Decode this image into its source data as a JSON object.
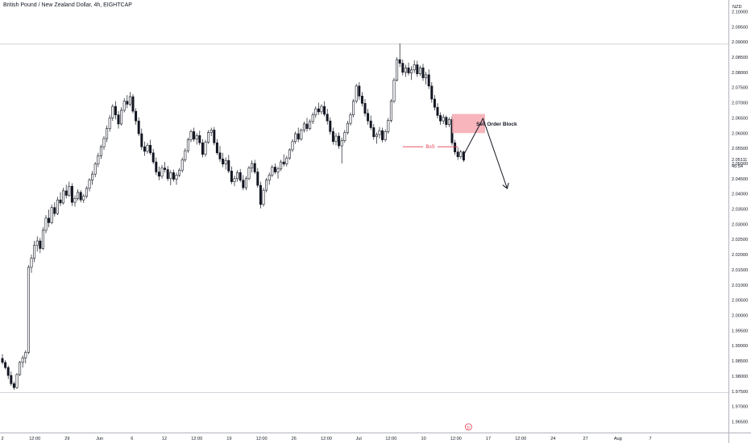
{
  "header": {
    "title": "British Pound / New Zealand Dollar, 4h, EIGHTCAP"
  },
  "chart_data": {
    "type": "candlestick",
    "currency_label": "NZD",
    "ylim": [
      1.963,
      2.1025
    ],
    "y_ticks": [
      "2.10000",
      "2.09500",
      "2.09000",
      "2.08500",
      "2.08000",
      "2.07500",
      "2.07000",
      "2.06500",
      "2.06000",
      "2.05500",
      "2.05000",
      "2.04500",
      "2.04000",
      "2.03500",
      "2.03000",
      "2.02500",
      "2.02000",
      "2.01500",
      "2.01000",
      "2.00500",
      "2.00000",
      "1.99500",
      "1.99000",
      "1.98500",
      "1.98000",
      "1.97500",
      "1.97000",
      "1.96500"
    ],
    "x_ticks": [
      "2",
      "12:00",
      "29",
      "Jun",
      "6",
      "12",
      "12:00",
      "19",
      "12:00",
      "26",
      "12:00",
      "Jul",
      "12:00",
      "10",
      "12:00",
      "17",
      "12:00",
      "24",
      "27",
      "Aug",
      "7"
    ],
    "last_price": "2.05111",
    "countdown": "45:54",
    "reference_lines": [
      2.0893,
      1.9745
    ],
    "candles": [
      [
        1.9858,
        1.9872,
        1.9838,
        1.9845
      ],
      [
        1.9845,
        1.9852,
        1.9822,
        1.9828
      ],
      [
        1.9828,
        1.9835,
        1.979,
        1.9802
      ],
      [
        1.9802,
        1.9815,
        1.9768,
        1.9775
      ],
      [
        1.9775,
        1.9782,
        1.9755,
        1.9762
      ],
      [
        1.9762,
        1.981,
        1.9758,
        1.9805
      ],
      [
        1.9805,
        1.985,
        1.98,
        1.9845
      ],
      [
        1.9845,
        1.9868,
        1.9828,
        1.986
      ],
      [
        1.986,
        1.9885,
        1.9842,
        1.9878
      ],
      [
        1.9878,
        2.0165,
        1.9872,
        2.0158
      ],
      [
        2.0158,
        2.02,
        2.014,
        2.0188
      ],
      [
        2.0188,
        2.0245,
        2.0175,
        2.023
      ],
      [
        2.023,
        2.026,
        2.021,
        2.0245
      ],
      [
        2.0245,
        2.0255,
        2.0205,
        2.022
      ],
      [
        2.022,
        2.029,
        2.0215,
        2.028
      ],
      [
        2.028,
        2.033,
        2.027,
        2.032
      ],
      [
        2.032,
        2.0348,
        2.029,
        2.0305
      ],
      [
        2.0305,
        2.0365,
        2.03,
        2.0355
      ],
      [
        2.0355,
        2.0372,
        2.0325,
        2.0335
      ],
      [
        2.0335,
        2.039,
        2.033,
        2.038
      ],
      [
        2.038,
        2.0405,
        2.036,
        2.037
      ],
      [
        2.037,
        2.042,
        2.0365,
        2.041
      ],
      [
        2.041,
        2.043,
        2.0385,
        2.0395
      ],
      [
        2.0395,
        2.044,
        2.039,
        2.0425
      ],
      [
        2.0425,
        2.0435,
        2.036,
        2.0372
      ],
      [
        2.0372,
        2.0395,
        2.0358,
        2.0385
      ],
      [
        2.0385,
        2.0415,
        2.0378,
        2.0405
      ],
      [
        2.0405,
        2.0412,
        2.0372,
        2.038
      ],
      [
        2.038,
        2.04,
        2.037,
        2.0392
      ],
      [
        2.0392,
        2.0425,
        2.0385,
        2.0418
      ],
      [
        2.0418,
        2.0452,
        2.0408,
        2.0445
      ],
      [
        2.0445,
        2.0475,
        2.043,
        2.0465
      ],
      [
        2.0465,
        2.0505,
        2.0455,
        2.0498
      ],
      [
        2.0498,
        2.0535,
        2.0488,
        2.0525
      ],
      [
        2.0525,
        2.0562,
        2.0515,
        2.0555
      ],
      [
        2.0555,
        2.059,
        2.0545,
        2.0582
      ],
      [
        2.0582,
        2.0625,
        2.057,
        2.0615
      ],
      [
        2.0615,
        2.066,
        2.0605,
        2.065
      ],
      [
        2.065,
        2.0695,
        2.064,
        2.0688
      ],
      [
        2.0688,
        2.0705,
        2.0645,
        2.066
      ],
      [
        2.066,
        2.0672,
        2.0615,
        2.063
      ],
      [
        2.063,
        2.0685,
        2.0625,
        2.0675
      ],
      [
        2.0675,
        2.0715,
        2.0668,
        2.0705
      ],
      [
        2.0705,
        2.0725,
        2.0682,
        2.0695
      ],
      [
        2.0695,
        2.0735,
        2.0688,
        2.072
      ],
      [
        2.072,
        2.0728,
        2.0665,
        2.0672
      ],
      [
        2.0672,
        2.0682,
        2.0628,
        2.064
      ],
      [
        2.064,
        2.0652,
        2.059,
        2.0598
      ],
      [
        2.0598,
        2.0615,
        2.0545,
        2.0555
      ],
      [
        2.0555,
        2.0572,
        2.0525,
        2.054
      ],
      [
        2.054,
        2.0568,
        2.0532,
        2.056
      ],
      [
        2.056,
        2.0578,
        2.0528,
        2.0535
      ],
      [
        2.0535,
        2.0548,
        2.0498,
        2.0505
      ],
      [
        2.0505,
        2.052,
        2.0462,
        2.0472
      ],
      [
        2.0472,
        2.049,
        2.0445,
        2.0458
      ],
      [
        2.0458,
        2.0495,
        2.045,
        2.0485
      ],
      [
        2.0485,
        2.0505,
        2.047,
        2.048
      ],
      [
        2.048,
        2.0492,
        2.0442,
        2.045
      ],
      [
        2.045,
        2.0478,
        2.0428,
        2.047
      ],
      [
        2.047,
        2.048,
        2.044,
        2.0448
      ],
      [
        2.0448,
        2.047,
        2.043,
        2.0462
      ],
      [
        2.0462,
        2.0485,
        2.0455,
        2.0478
      ],
      [
        2.0478,
        2.052,
        2.047,
        2.0512
      ],
      [
        2.0512,
        2.055,
        2.0505,
        2.0542
      ],
      [
        2.0542,
        2.0585,
        2.0535,
        2.0578
      ],
      [
        2.0578,
        2.0612,
        2.057,
        2.0605
      ],
      [
        2.0605,
        2.0618,
        2.0572,
        2.058
      ],
      [
        2.058,
        2.06,
        2.0562,
        2.0592
      ],
      [
        2.0592,
        2.0608,
        2.056,
        2.0568
      ],
      [
        2.0568,
        2.058,
        2.052,
        2.053
      ],
      [
        2.053,
        2.0578,
        2.0522,
        2.057
      ],
      [
        2.057,
        2.061,
        2.0565,
        2.0602
      ],
      [
        2.0602,
        2.0618,
        2.059,
        2.061
      ],
      [
        2.061,
        2.062,
        2.056,
        2.0568
      ],
      [
        2.0568,
        2.058,
        2.0528,
        2.0535
      ],
      [
        2.0535,
        2.0558,
        2.0505,
        2.0515
      ],
      [
        2.0515,
        2.0535,
        2.0488,
        2.0498
      ],
      [
        2.0498,
        2.052,
        2.048,
        2.051
      ],
      [
        2.051,
        2.0528,
        2.0468,
        2.0475
      ],
      [
        2.0475,
        2.049,
        2.0432,
        2.044
      ],
      [
        2.044,
        2.046,
        2.0425,
        2.045
      ],
      [
        2.045,
        2.0478,
        2.044,
        2.047
      ],
      [
        2.047,
        2.0482,
        2.0438,
        2.0445
      ],
      [
        2.0445,
        2.0462,
        2.0412,
        2.042
      ],
      [
        2.042,
        2.0458,
        2.0412,
        2.045
      ],
      [
        2.045,
        2.0492,
        2.0445,
        2.0485
      ],
      [
        2.0485,
        2.051,
        2.047,
        2.05
      ],
      [
        2.05,
        2.0512,
        2.0465,
        2.0472
      ],
      [
        2.0472,
        2.0485,
        2.042,
        2.0428
      ],
      [
        2.0428,
        2.044,
        2.0352,
        2.0365
      ],
      [
        2.0365,
        2.042,
        2.0358,
        2.0412
      ],
      [
        2.0412,
        2.0452,
        2.0405,
        2.0445
      ],
      [
        2.0445,
        2.047,
        2.043,
        2.0462
      ],
      [
        2.0462,
        2.0495,
        2.0455,
        2.0488
      ],
      [
        2.0488,
        2.05,
        2.0465,
        2.0472
      ],
      [
        2.0472,
        2.049,
        2.045,
        2.0482
      ],
      [
        2.0482,
        2.0512,
        2.0475,
        2.0505
      ],
      [
        2.0505,
        2.053,
        2.049,
        2.0498
      ],
      [
        2.0498,
        2.0525,
        2.049,
        2.0518
      ],
      [
        2.0518,
        2.055,
        2.0512,
        2.0545
      ],
      [
        2.0545,
        2.058,
        2.0538,
        2.0572
      ],
      [
        2.0572,
        2.0605,
        2.0565,
        2.0598
      ],
      [
        2.0598,
        2.0618,
        2.057,
        2.058
      ],
      [
        2.058,
        2.0615,
        2.0575,
        2.061
      ],
      [
        2.061,
        2.0638,
        2.0602,
        2.063
      ],
      [
        2.063,
        2.065,
        2.0605,
        2.0615
      ],
      [
        2.0615,
        2.0645,
        2.061,
        2.0638
      ],
      [
        2.0638,
        2.0668,
        2.063,
        2.066
      ],
      [
        2.066,
        2.0688,
        2.065,
        2.068
      ],
      [
        2.068,
        2.07,
        2.066,
        2.067
      ],
      [
        2.067,
        2.0695,
        2.0662,
        2.0688
      ],
      [
        2.0688,
        2.0705,
        2.0655,
        2.0662
      ],
      [
        2.0662,
        2.068,
        2.0628,
        2.064
      ],
      [
        2.064,
        2.0652,
        2.0595,
        2.0605
      ],
      [
        2.0605,
        2.0618,
        2.0562,
        2.0572
      ],
      [
        2.0572,
        2.06,
        2.056,
        2.059
      ],
      [
        2.059,
        2.0602,
        2.0548,
        2.0558
      ],
      [
        2.0558,
        2.0585,
        2.05,
        2.0575
      ],
      [
        2.0575,
        2.061,
        2.0568,
        2.0602
      ],
      [
        2.0602,
        2.064,
        2.0595,
        2.0632
      ],
      [
        2.0632,
        2.0668,
        2.0625,
        2.066
      ],
      [
        2.066,
        2.0712,
        2.0652,
        2.0705
      ],
      [
        2.0705,
        2.0762,
        2.0698,
        2.0755
      ],
      [
        2.0755,
        2.0768,
        2.071,
        2.0722
      ],
      [
        2.0722,
        2.0735,
        2.0688,
        2.0698
      ],
      [
        2.0698,
        2.0712,
        2.0655,
        2.0665
      ],
      [
        2.0665,
        2.068,
        2.0628,
        2.064
      ],
      [
        2.064,
        2.0658,
        2.061,
        2.0618
      ],
      [
        2.0618,
        2.063,
        2.0578,
        2.0588
      ],
      [
        2.0588,
        2.0602,
        2.0565,
        2.0595
      ],
      [
        2.0595,
        2.062,
        2.0582,
        2.0608
      ],
      [
        2.0608,
        2.0618,
        2.057,
        2.0578
      ],
      [
        2.0578,
        2.0612,
        2.0572,
        2.0605
      ],
      [
        2.0605,
        2.065,
        2.0598,
        2.0642
      ],
      [
        2.0642,
        2.0712,
        2.0635,
        2.0705
      ],
      [
        2.0705,
        2.0782,
        2.0698,
        2.0775
      ],
      [
        2.0775,
        2.085,
        2.077,
        2.0842
      ],
      [
        2.0842,
        2.0895,
        2.0818,
        2.083
      ],
      [
        2.083,
        2.0842,
        2.079,
        2.08
      ],
      [
        2.08,
        2.0825,
        2.0785,
        2.0815
      ],
      [
        2.0815,
        2.0832,
        2.079,
        2.0798
      ],
      [
        2.0798,
        2.082,
        2.0775,
        2.0808
      ],
      [
        2.0808,
        2.084,
        2.0798,
        2.0825
      ],
      [
        2.0825,
        2.0838,
        2.0785,
        2.0795
      ],
      [
        2.0795,
        2.0822,
        2.0788,
        2.0815
      ],
      [
        2.0815,
        2.0828,
        2.0772,
        2.0782
      ],
      [
        2.0782,
        2.0802,
        2.076,
        2.0792
      ],
      [
        2.0792,
        2.081,
        2.0745,
        2.0755
      ],
      [
        2.0755,
        2.0768,
        2.07,
        2.0712
      ],
      [
        2.0712,
        2.0725,
        2.0675,
        2.0685
      ],
      [
        2.0685,
        2.0698,
        2.0648,
        2.0658
      ],
      [
        2.0658,
        2.0668,
        2.0628,
        2.064
      ],
      [
        2.064,
        2.0662,
        2.063,
        2.0652
      ],
      [
        2.0652,
        2.0658,
        2.0618,
        2.0628
      ],
      [
        2.0628,
        2.0652,
        2.062,
        2.0645
      ],
      [
        2.0645,
        2.0655,
        2.056,
        2.0568
      ],
      [
        2.0568,
        2.0578,
        2.0528,
        2.0538
      ],
      [
        2.0538,
        2.0552,
        2.0512,
        2.0522
      ],
      [
        2.0522,
        2.0545,
        2.0515,
        2.0538
      ],
      [
        2.0538,
        2.0542,
        2.0505,
        2.0511
      ]
    ],
    "annotations": {
      "zone_label": "Sell Order Block",
      "zone_y": [
        2.06,
        2.0663
      ],
      "bos_label": "BoS",
      "bos_level": 2.0555,
      "projection_path": [
        [
          2.0528,
          0
        ],
        [
          2.0648,
          4
        ],
        [
          2.0418,
          9
        ]
      ]
    },
    "event_marker": "p"
  }
}
